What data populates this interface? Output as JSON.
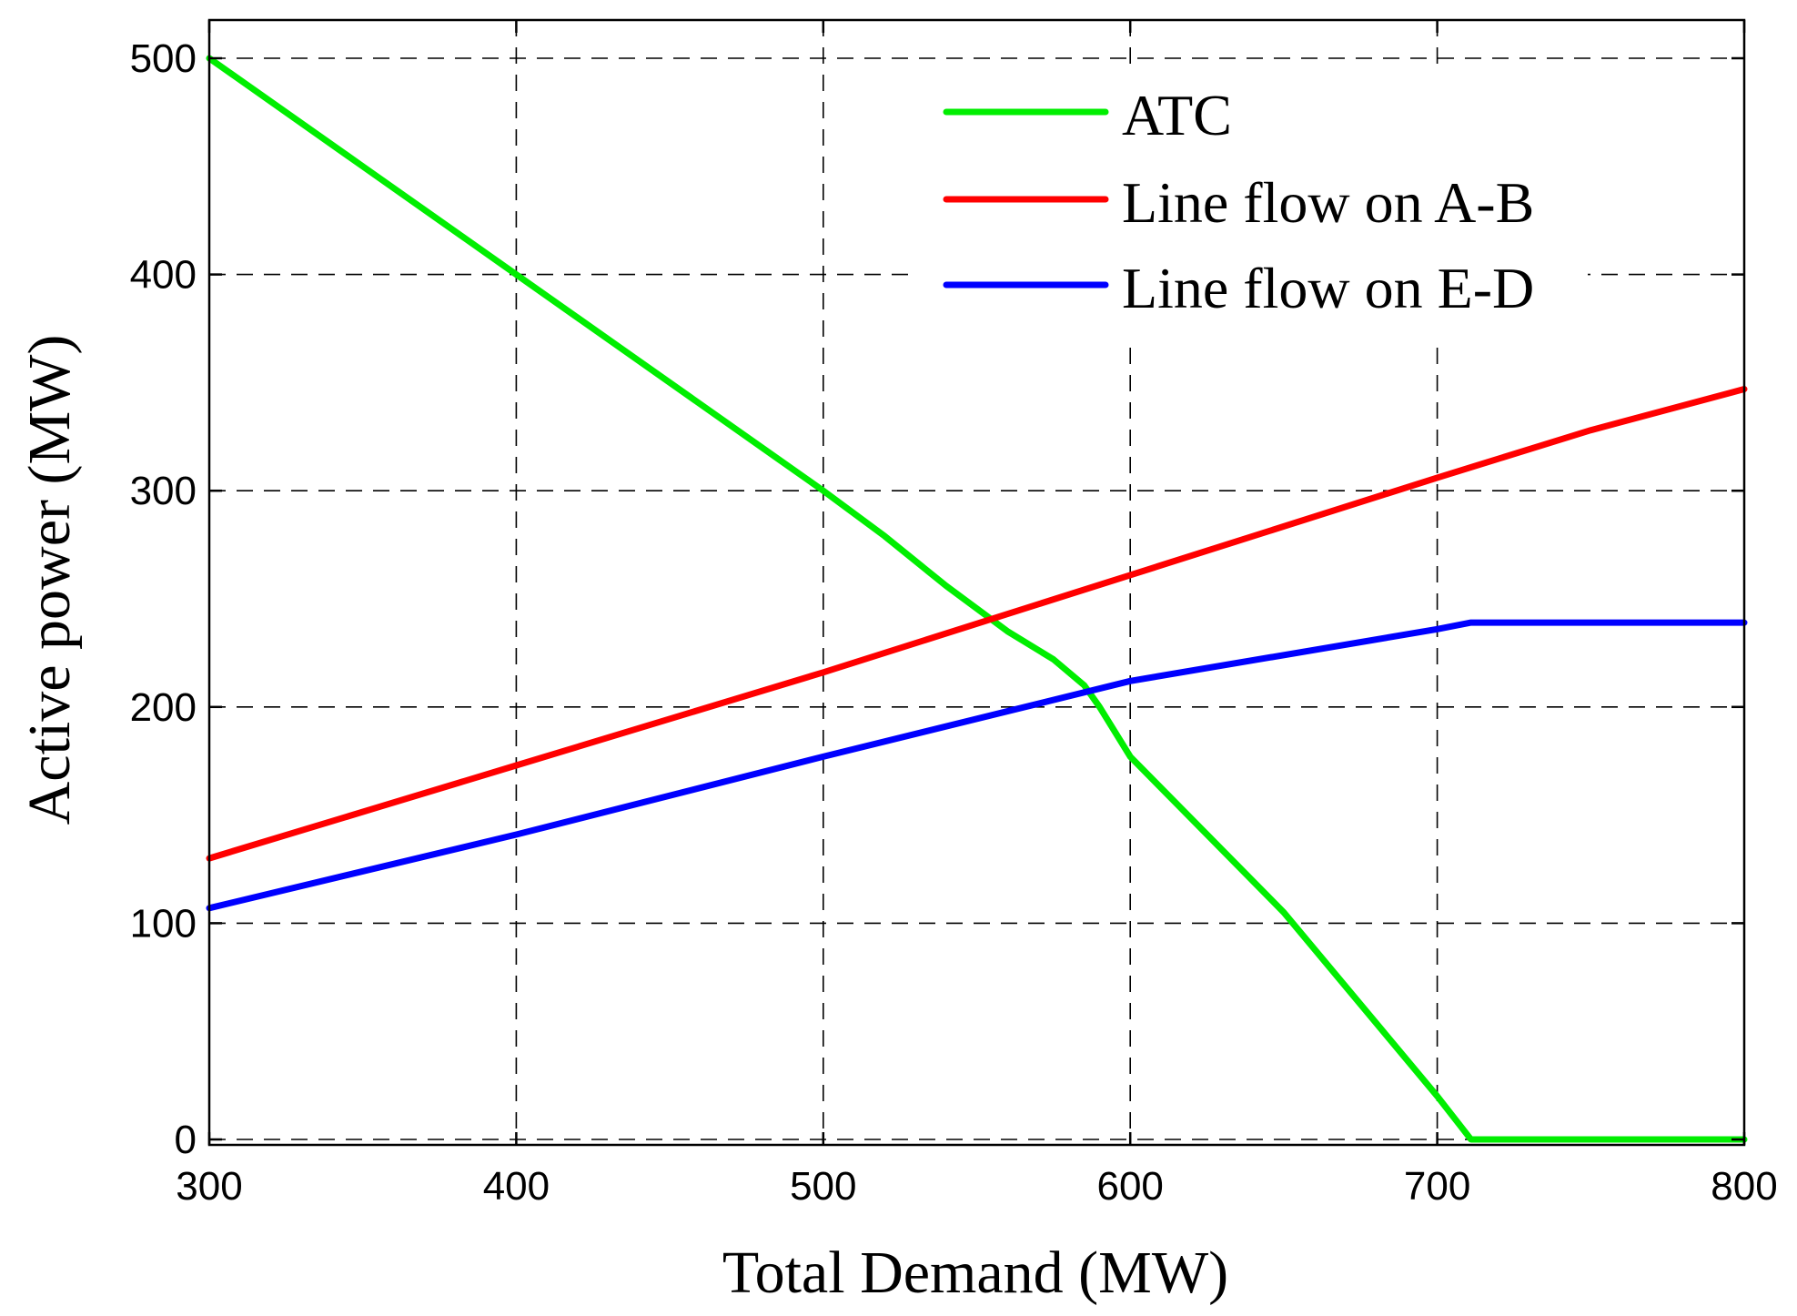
{
  "chart_data": {
    "type": "line",
    "title": "",
    "xlabel": "Total Demand (MW)",
    "ylabel": "Active power (MW)",
    "xlim": [
      300,
      800
    ],
    "ylim": [
      0,
      500
    ],
    "xticks": [
      300,
      400,
      500,
      600,
      700,
      800
    ],
    "yticks": [
      0,
      100,
      200,
      300,
      400,
      500
    ],
    "grid": true,
    "legend_position": "top-right",
    "series": [
      {
        "name": "ATC",
        "color": "#00ee00",
        "x": [
          300,
          350,
          400,
          450,
          500,
          520,
          540,
          560,
          575,
          585,
          590,
          600,
          650,
          700,
          711,
          800
        ],
        "y": [
          500,
          450,
          400,
          350,
          300,
          279,
          256,
          235,
          222,
          210,
          200,
          177,
          105,
          20,
          0,
          0
        ]
      },
      {
        "name": "Line flow on A-B",
        "color": "#ff0000",
        "x": [
          300,
          400,
          500,
          600,
          700,
          750,
          800
        ],
        "y": [
          130,
          173,
          216,
          261,
          306,
          328,
          347
        ]
      },
      {
        "name": "Line flow on E-D",
        "color": "#0000ff",
        "x": [
          300,
          400,
          500,
          600,
          700,
          711,
          800
        ],
        "y": [
          107,
          141,
          177,
          212,
          236,
          239,
          239
        ]
      }
    ]
  }
}
